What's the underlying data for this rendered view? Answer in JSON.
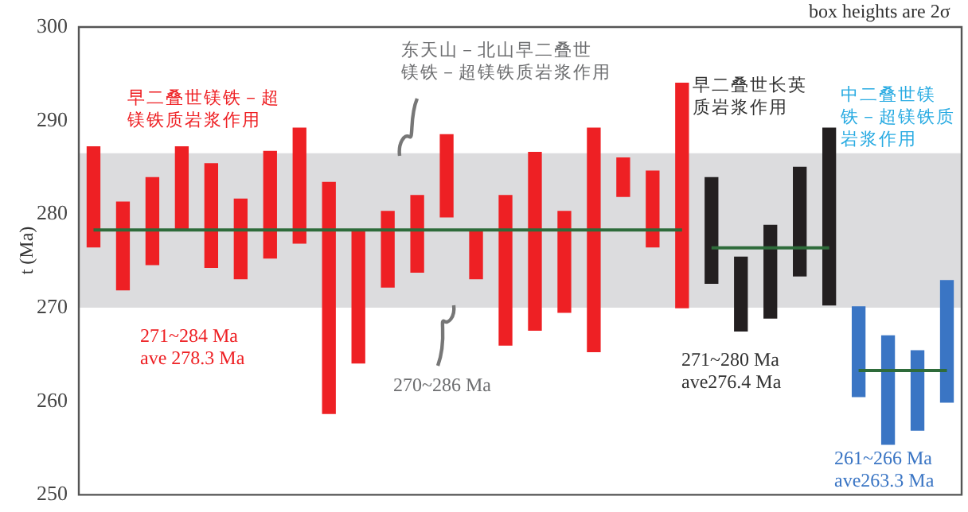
{
  "chart_data": {
    "type": "bar",
    "ylabel": "t (Ma)",
    "categories": [
      null,
      null,
      null,
      null,
      null,
      null,
      null,
      null,
      null,
      null,
      null,
      null,
      null,
      null,
      null,
      null,
      null,
      null,
      null,
      null,
      null,
      null,
      null,
      null,
      null,
      null,
      null,
      null,
      null,
      null
    ],
    "series": [
      {
        "color": "#ee2024",
        "base": [
          276.5,
          271.9,
          274.6,
          278.4,
          274.3,
          273.1,
          275.3,
          276.9,
          258.7,
          264.1,
          272.2,
          273.8,
          279.7,
          273.1,
          266.0,
          267.6,
          269.5,
          265.3,
          281.9,
          276.5,
          270.0,
          null,
          null,
          null,
          null,
          null,
          null,
          null,
          null,
          null
        ],
        "values": [
          10.7,
          9.4,
          9.3,
          8.8,
          11.1,
          8.5,
          11.4,
          12.3,
          24.7,
          14.0,
          8.1,
          8.2,
          8.8,
          5.0,
          16.0,
          19.0,
          10.8,
          23.9,
          4.1,
          8.1,
          24.0,
          null,
          null,
          null,
          null,
          null,
          null,
          null,
          null,
          null
        ]
      },
      {
        "color": "#231f20",
        "base": [
          null,
          null,
          null,
          null,
          null,
          null,
          null,
          null,
          null,
          null,
          null,
          null,
          null,
          null,
          null,
          null,
          null,
          null,
          null,
          null,
          null,
          272.6,
          267.5,
          268.9,
          273.4,
          270.3,
          null,
          null,
          null,
          null
        ],
        "values": [
          null,
          null,
          null,
          null,
          null,
          null,
          null,
          null,
          null,
          null,
          null,
          null,
          null,
          null,
          null,
          null,
          null,
          null,
          null,
          null,
          null,
          11.3,
          7.9,
          9.9,
          11.6,
          18.9,
          null,
          null,
          null,
          null
        ]
      },
      {
        "color": "#3a75c4",
        "base": [
          null,
          null,
          null,
          null,
          null,
          null,
          null,
          null,
          null,
          null,
          null,
          null,
          null,
          null,
          null,
          null,
          null,
          null,
          null,
          null,
          null,
          null,
          null,
          null,
          null,
          null,
          260.5,
          255.4,
          256.9,
          259.9
        ],
        "values": [
          null,
          null,
          null,
          null,
          null,
          null,
          null,
          null,
          null,
          null,
          null,
          null,
          null,
          null,
          null,
          null,
          null,
          null,
          null,
          null,
          null,
          null,
          null,
          null,
          null,
          null,
          9.6,
          11.6,
          8.5,
          13.0
        ]
      },
      {
        "type": "line",
        "color": "#2e6b3a",
        "values": [
          278.3,
          278.3,
          278.3,
          278.3,
          278.3,
          278.3,
          278.3,
          278.3,
          278.3,
          278.3,
          278.3,
          278.3,
          278.3,
          278.3,
          278.3,
          278.3,
          278.3,
          278.3,
          278.3,
          278.3,
          278.3,
          null,
          null,
          null,
          null,
          null,
          null,
          null,
          null,
          null
        ]
      },
      {
        "type": "line",
        "color": "#2e6b3a",
        "values": [
          null,
          null,
          null,
          null,
          null,
          null,
          null,
          null,
          null,
          null,
          null,
          null,
          null,
          null,
          null,
          null,
          null,
          null,
          null,
          null,
          null,
          276.4,
          276.4,
          276.4,
          276.4,
          276.4,
          null,
          null,
          null,
          null
        ]
      },
      {
        "type": "line",
        "color": "#2e6b3a",
        "values": [
          null,
          null,
          null,
          null,
          null,
          null,
          null,
          null,
          null,
          null,
          null,
          null,
          null,
          null,
          null,
          null,
          null,
          null,
          null,
          null,
          null,
          null,
          null,
          null,
          null,
          null,
          263.3,
          263.3,
          263.3,
          263.3
        ]
      }
    ],
    "bands": [
      {
        "axis": "y",
        "from": 270,
        "to": 286.5,
        "color": "#dcdcde"
      }
    ],
    "ylim": [
      250,
      300
    ],
    "yticks": [
      250,
      260,
      270,
      280,
      290,
      300
    ],
    "tick_labels": "y",
    "grid": false,
    "legend": false,
    "marker": "none",
    "annotations": [
      "早二叠世镁铁－超",
      "镁铁质岩浆作用",
      "271~284 Ma",
      "ave 278.3 Ma",
      "东天山－北山早二叠世",
      "镁铁－超镁铁质岩浆作用",
      "270~286 Ma",
      "早二叠世长英",
      "质岩浆作用",
      "271~280 Ma",
      "ave276.4 Ma",
      "中二叠世镁",
      "铁－超镁铁质",
      "岩浆作用",
      "261~266 Ma",
      "ave263.3 Ma",
      "box heights are 2σ"
    ]
  }
}
